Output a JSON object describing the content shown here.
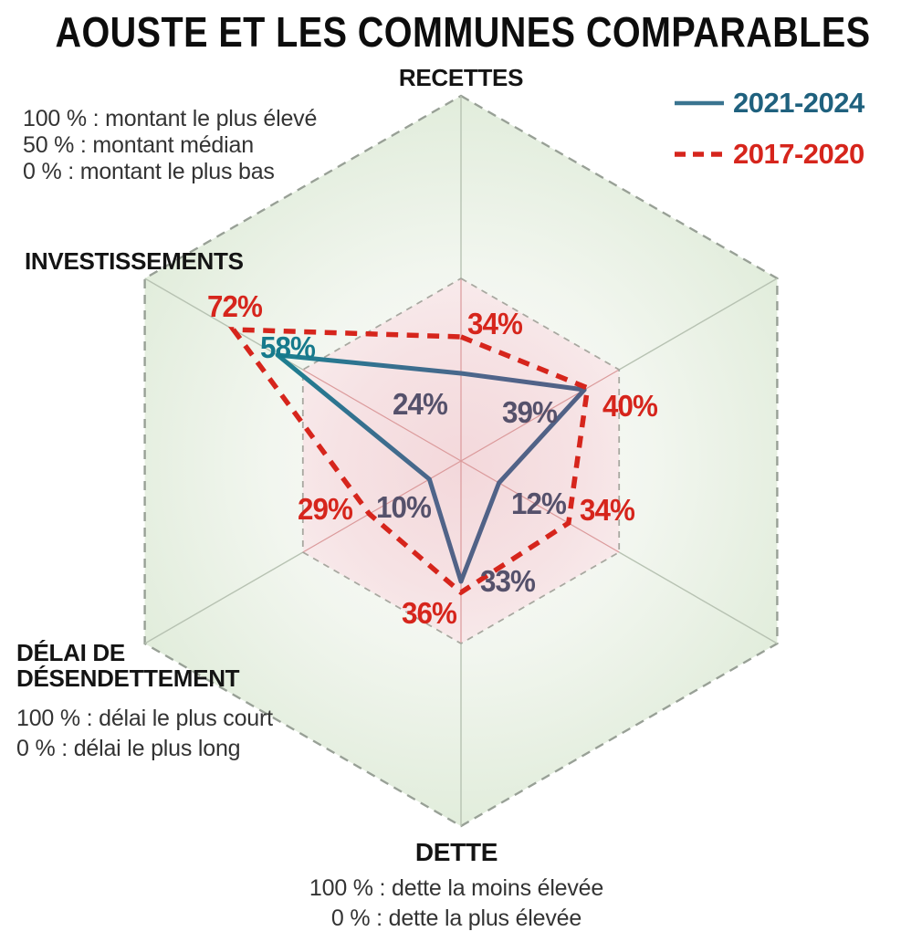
{
  "title": "AOUSTE ET LES COMMUNES COMPARABLES",
  "legend": {
    "items": [
      {
        "label": "2021-2024",
        "color": "#2f7390",
        "style": "solid"
      },
      {
        "label": "2017-2020",
        "color": "#d6251c",
        "style": "dashed"
      }
    ]
  },
  "scale_note_top": {
    "lines": [
      "100 % : montant le plus élevé",
      "50 % : montant médian",
      "0 % : montant le plus bas"
    ]
  },
  "axes_labels": {
    "recettes": "RECETTES",
    "investissements": "INVESTISSEMENTS",
    "delai": {
      "title_line1": "DÉLAI DE",
      "title_line2": "DÉSENDETTEMENT",
      "notes": [
        "100 % : délai le plus court",
        "0 % : délai le plus long"
      ]
    },
    "dette": {
      "title": "DETTE",
      "notes": [
        "100 % : dette la moins élevée",
        "0 % : dette la plus élevée"
      ]
    }
  },
  "palette": {
    "red": "#d6251c",
    "teal_text": "#1f617e",
    "teal_value": "#167a8c",
    "slate_value": "#55516b",
    "grid_dash_outer": "#98a096",
    "grid_dash_inner": "#a8a8a0",
    "axis_line_green": "#b7c2b2",
    "axis_line_pink": "#db9a9b",
    "hex_green_edge": "#e0ecda",
    "hex_pink_center": "#f3d8db"
  },
  "chart_data": {
    "type": "radar",
    "max_pct": 100,
    "median_ring_pct": 50,
    "axes": [
      {
        "position": "top",
        "label": "RECETTES"
      },
      {
        "position": "upper-right",
        "label": ""
      },
      {
        "position": "lower-right",
        "label": ""
      },
      {
        "position": "bottom",
        "label": "DETTE"
      },
      {
        "position": "lower-left",
        "label": "DÉLAI DE DÉSENDETTEMENT"
      },
      {
        "position": "upper-left",
        "label": "INVESTISSEMENTS"
      }
    ],
    "series": [
      {
        "name": "2021-2024",
        "style": "solid",
        "color_start": "#1c8090",
        "color_end": "#535d7e",
        "values_pct": [
          24,
          39,
          12,
          33,
          10,
          58
        ]
      },
      {
        "name": "2017-2020",
        "style": "dashed",
        "color": "#d6251c",
        "values_pct": [
          34,
          40,
          34,
          36,
          29,
          72
        ]
      }
    ],
    "value_label_format": "percent",
    "legend_position": "top-right"
  }
}
